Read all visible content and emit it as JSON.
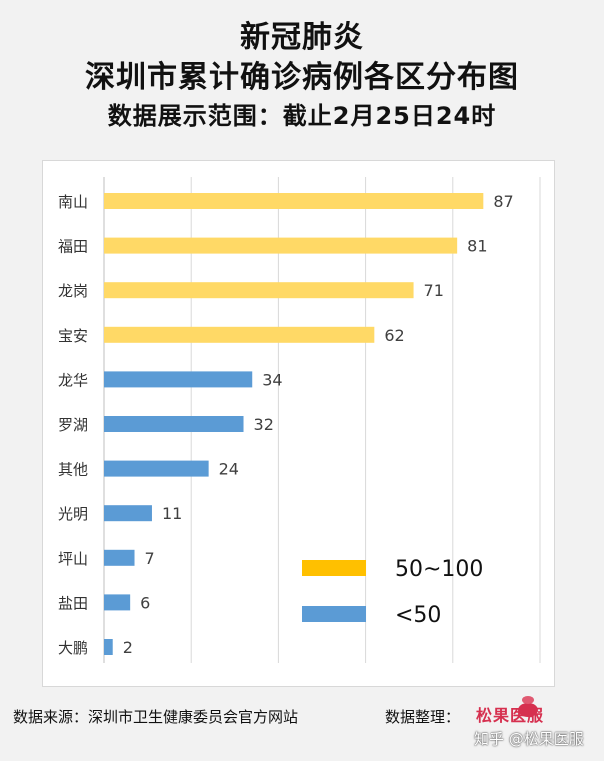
{
  "title": {
    "line1": "新冠肺炎",
    "line2": "深圳市累计确诊病例各区分布图",
    "line3": "数据展示范围：截止2月25日24时"
  },
  "chart_data": {
    "type": "bar",
    "orientation": "horizontal",
    "categories": [
      "南山",
      "福田",
      "龙岗",
      "宝安",
      "龙华",
      "罗湖",
      "其他",
      "光明",
      "坪山",
      "盐田",
      "大鹏"
    ],
    "values": [
      87,
      81,
      71,
      62,
      34,
      32,
      24,
      11,
      7,
      6,
      2
    ],
    "xlim": [
      0,
      100
    ],
    "grid": true,
    "legend_position": "bottom-right",
    "legend": [
      {
        "label": "50~100",
        "color": "#ffd966"
      },
      {
        "label": "<50",
        "color": "#5b9bd5"
      }
    ],
    "threshold": 50,
    "colors": {
      "high": "#ffd966",
      "low": "#5b9bd5",
      "legend_high": "#ffc000"
    }
  },
  "footer": {
    "source": "数据来源：深圳市卫生健康委员会官方网站",
    "compiled_by": "数据整理：",
    "logo_text": "松果医服"
  },
  "watermark": "知乎 @松果医服"
}
